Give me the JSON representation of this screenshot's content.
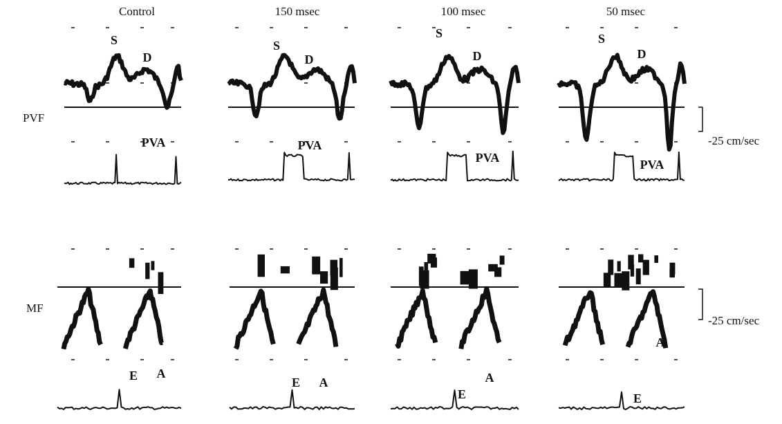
{
  "row_labels": {
    "pvf": "PVF",
    "mf": "MF"
  },
  "scale_labels": {
    "pvf": "-25 cm/sec",
    "mf": "-25 cm/sec"
  },
  "columns": [
    {
      "title": "Control",
      "s": "S",
      "d": "D",
      "pva": "PVA",
      "e": "E",
      "a": "A"
    },
    {
      "title": "150 msec",
      "s": "S",
      "d": "D",
      "pva": "PVA",
      "e": "E",
      "a": "A"
    },
    {
      "title": "100 msec",
      "s": "S",
      "d": "D",
      "pva": "PVA",
      "e": "E",
      "a": "A"
    },
    {
      "title": "50 msec",
      "s": "S",
      "d": "D",
      "pva": "PVA",
      "e": "E",
      "a": "A"
    }
  ]
}
